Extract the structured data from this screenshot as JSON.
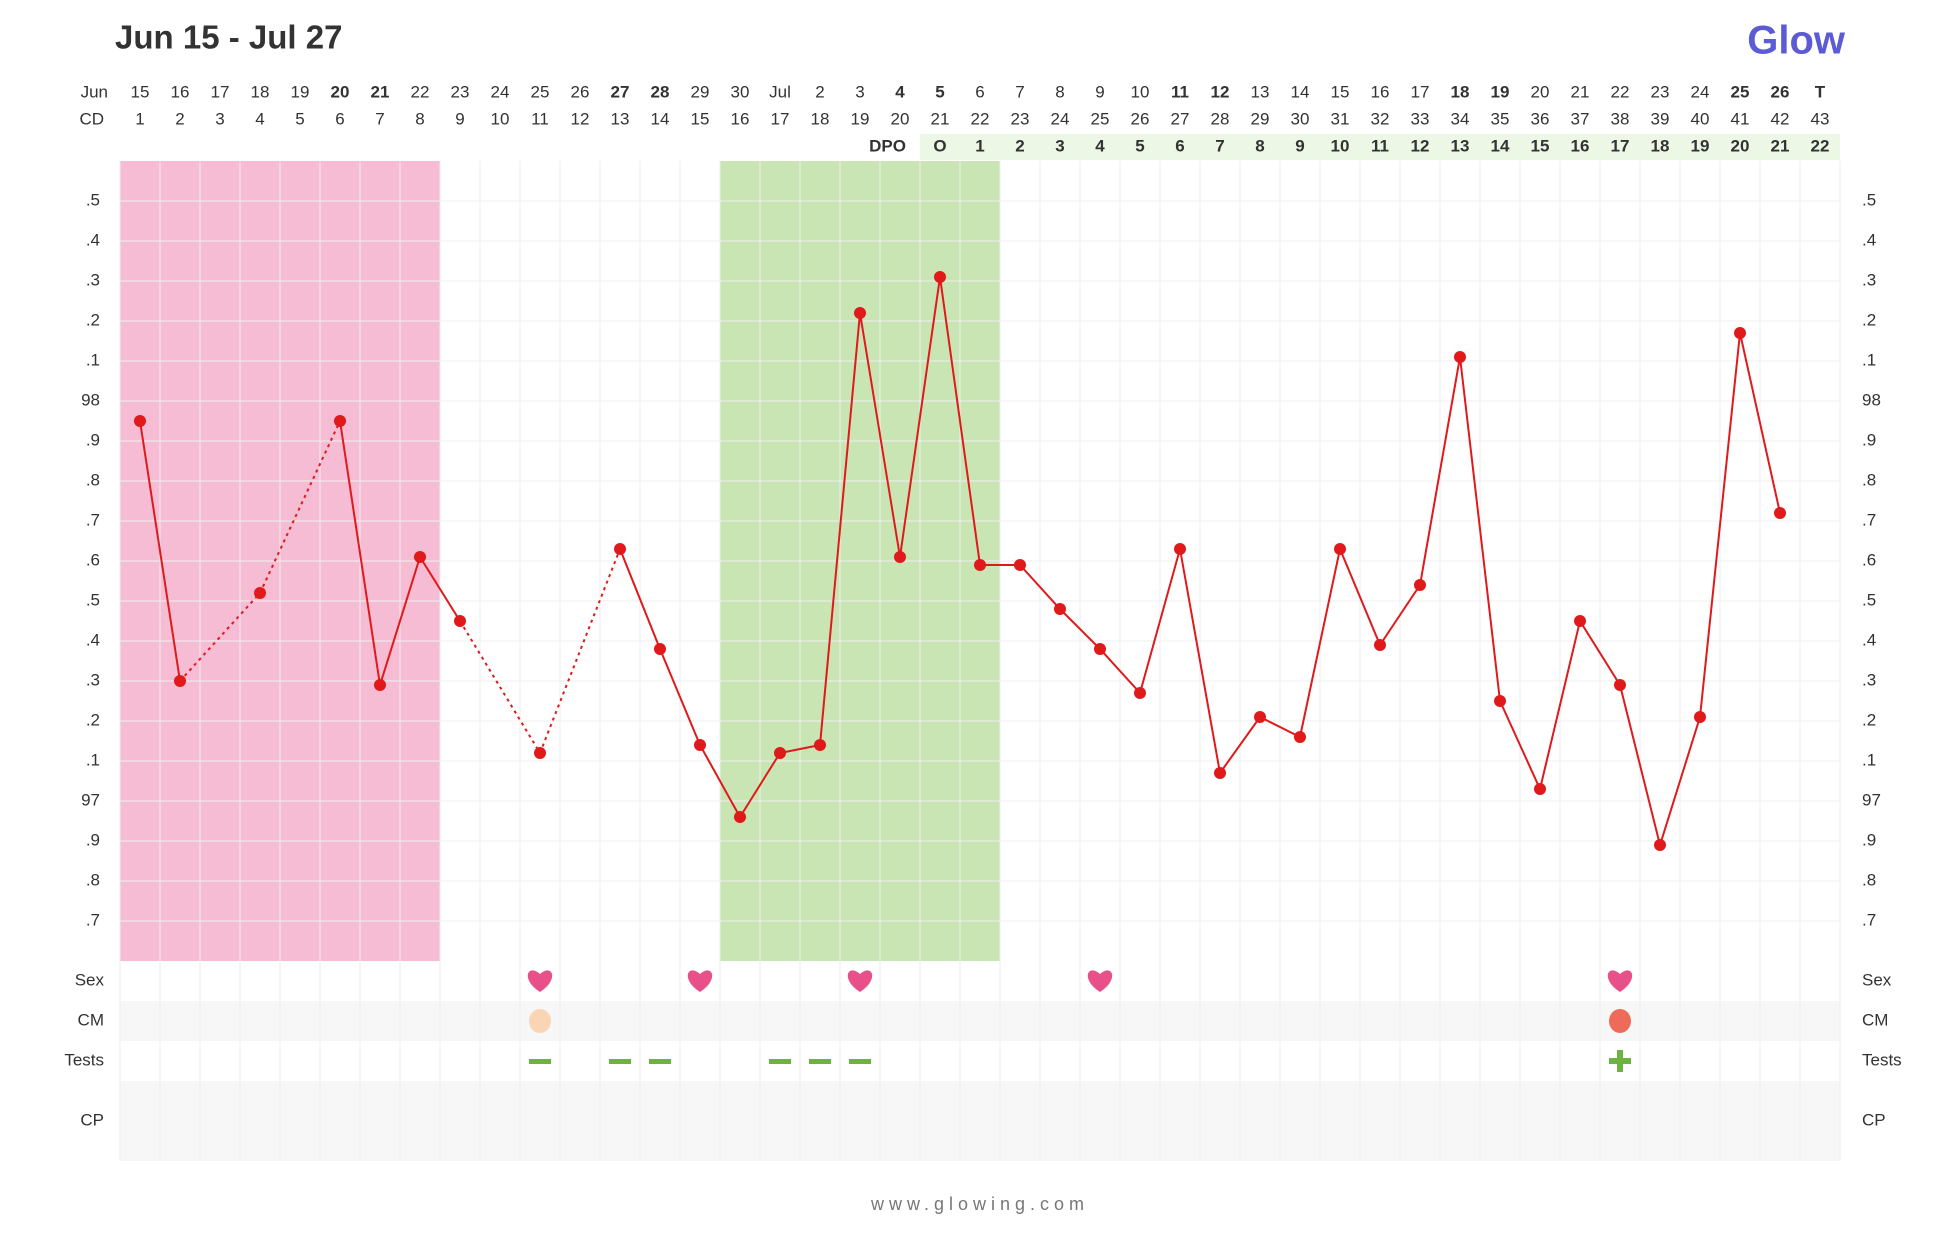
{
  "chart_data": {
    "type": "line",
    "title": "Jun 15 - Jul 27",
    "brand": "Glow",
    "footer": "www.glowing.com",
    "month_label": "Jun",
    "cd_label": "CD",
    "dpo_label": "DPO",
    "categories": [
      "15",
      "16",
      "17",
      "18",
      "19",
      "20",
      "21",
      "22",
      "23",
      "24",
      "25",
      "26",
      "27",
      "28",
      "29",
      "30",
      "Jul",
      "2",
      "3",
      "4",
      "5",
      "6",
      "7",
      "8",
      "9",
      "10",
      "11",
      "12",
      "13",
      "14",
      "15",
      "16",
      "17",
      "18",
      "19",
      "20",
      "21",
      "22",
      "23",
      "24",
      "25",
      "26",
      "T"
    ],
    "red_dates": [
      5,
      6,
      12,
      13,
      19,
      20,
      26,
      27,
      33,
      34,
      40,
      41
    ],
    "red_date_color": "#e8473f",
    "today_index": 42,
    "today_color": "#5b5bd6",
    "cd": [
      1,
      2,
      3,
      4,
      5,
      6,
      7,
      8,
      9,
      10,
      11,
      12,
      13,
      14,
      15,
      16,
      17,
      18,
      19,
      20,
      21,
      22,
      23,
      24,
      25,
      26,
      27,
      28,
      29,
      30,
      31,
      32,
      33,
      34,
      35,
      36,
      37,
      38,
      39,
      40,
      41,
      42,
      43
    ],
    "dpo": [
      null,
      null,
      null,
      null,
      null,
      null,
      null,
      null,
      null,
      null,
      null,
      null,
      null,
      null,
      null,
      null,
      null,
      null,
      null,
      null,
      "O",
      1,
      2,
      3,
      4,
      5,
      6,
      7,
      8,
      9,
      10,
      11,
      12,
      13,
      14,
      15,
      16,
      17,
      18,
      19,
      20,
      21,
      22
    ],
    "values": [
      97.95,
      97.3,
      null,
      97.52,
      null,
      97.95,
      97.29,
      97.61,
      97.45,
      null,
      97.12,
      null,
      97.63,
      97.38,
      97.14,
      96.96,
      97.12,
      97.14,
      98.22,
      97.61,
      98.31,
      97.59,
      97.59,
      97.48,
      97.38,
      97.27,
      97.63,
      97.07,
      97.21,
      97.16,
      97.63,
      97.39,
      97.54,
      98.11,
      97.25,
      97.03,
      97.45,
      97.29,
      96.89,
      97.21,
      98.17,
      97.72,
      null
    ],
    "color": "#e0191b",
    "ylim": [
      96.6,
      98.6
    ],
    "yticks": [
      {
        "value": 96.7,
        "label": ".7"
      },
      {
        "value": 96.8,
        "label": ".8"
      },
      {
        "value": 96.9,
        "label": ".9"
      },
      97,
      {
        "value": 97.1,
        "label": ".1"
      },
      {
        "value": 97.2,
        "label": ".2"
      },
      {
        "value": 97.3,
        "label": ".3"
      },
      {
        "value": 97.4,
        "label": ".4"
      },
      {
        "value": 97.5,
        "label": ".5"
      },
      {
        "value": 97.6,
        "label": ".6"
      },
      {
        "value": 97.7,
        "label": ".7"
      },
      {
        "value": 97.8,
        "label": ".8"
      },
      {
        "value": 97.9,
        "label": ".9"
      },
      98,
      {
        "value": 98.1,
        "label": ".1"
      },
      {
        "value": 98.2,
        "label": ".2"
      },
      {
        "value": 98.3,
        "label": ".3"
      },
      {
        "value": 98.4,
        "label": ".4"
      },
      {
        "value": 98.5,
        "label": ".5"
      }
    ],
    "grid": true,
    "period_cd": [
      1,
      8
    ],
    "period_color": "#f5bcd3",
    "fertile_cd": [
      16,
      22
    ],
    "fertile_color": "#c9e5b3",
    "dpo_band_color": "#edf7e6",
    "row_labels": [
      "Sex",
      "CM",
      "Tests",
      "CP"
    ],
    "sex": [
      11,
      15,
      19,
      25,
      38
    ],
    "sex_color": "#e8508a",
    "cm": [
      {
        "cd": 11,
        "color": "#f9d5b4"
      },
      {
        "cd": 38,
        "color": "#ee6b5a"
      }
    ],
    "tests_negative": [
      11,
      13,
      14,
      17,
      18,
      19
    ],
    "tests_positive": [
      38
    ],
    "tests_color": "#6cb33f"
  }
}
